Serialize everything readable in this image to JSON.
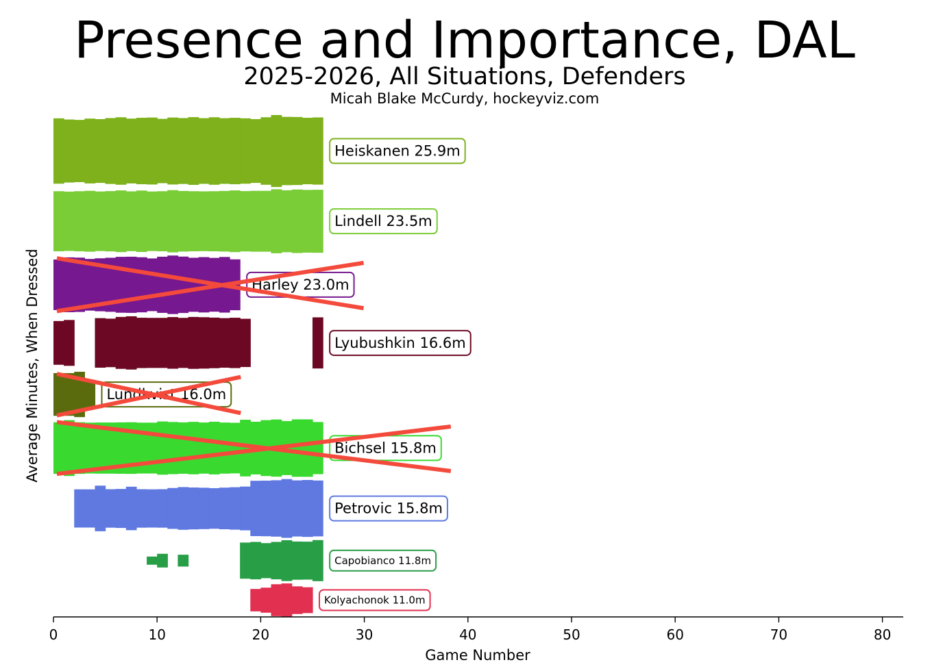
{
  "chart_data": {
    "type": "streamgraph",
    "title": "Presence and Importance, DAL",
    "subtitle": "2025-2026, All Situations, Defenders",
    "credit": "Micah Blake McCurdy, hockeyviz.com",
    "xlabel": "Game Number",
    "ylabel": "Average Minutes, When Dressed",
    "xlim": [
      0,
      82
    ],
    "xticks": [
      0,
      10,
      20,
      30,
      40,
      50,
      60,
      70,
      80
    ],
    "colors": {
      "strike": "#f44a3c",
      "axis": "#000000"
    },
    "players": [
      {
        "name": "Heiskanen",
        "label": "Heiskanen 25.9m",
        "avg": 25.9,
        "color": "#7eb11b",
        "big_label": true,
        "crossed": false,
        "segments": [
          {
            "start": 0,
            "values": [
              24.8,
              23.9,
              23.6,
              24.6,
              24.2,
              25.0,
              25.6,
              24.6,
              25.2,
              25.4,
              24.4,
              25.4,
              25.0,
              25.7,
              24.9,
              25.6,
              24.9,
              25.2,
              24.8,
              24.2,
              25.6,
              27.3,
              25.9,
              25.8,
              25.2,
              25.5
            ]
          }
        ]
      },
      {
        "name": "Lindell",
        "label": "Lindell 23.5m",
        "avg": 23.5,
        "color": "#7acd36",
        "big_label": true,
        "crossed": false,
        "segments": [
          {
            "start": 0,
            "values": [
              22.8,
              22.5,
              22.8,
              23.1,
              22.6,
              22.9,
              23.4,
              22.7,
              23.3,
              22.6,
              22.8,
              23.6,
              23.0,
              22.8,
              22.7,
              22.8,
              23.0,
              23.4,
              22.9,
              23.1,
              23.1,
              24.3,
              23.5,
              24.1,
              23.8,
              23.9
            ]
          }
        ]
      },
      {
        "name": "Harley",
        "label": "Harley 23.0m",
        "avg": 23.0,
        "color": "#76188f",
        "big_label": true,
        "crossed": true,
        "segments": [
          {
            "start": 0,
            "values": [
              19.2,
              20.8,
              20.6,
              19.6,
              20.1,
              20.5,
              21.2,
              21.3,
              20.9,
              20.0,
              21.3,
              22.2,
              21.4,
              20.5,
              21.0,
              20.4,
              21.1,
              19.3
            ]
          }
        ]
      },
      {
        "name": "Lyubushkin",
        "label": "Lyubushkin 16.6m",
        "avg": 16.6,
        "color": "#6c0823",
        "big_label": true,
        "crossed": false,
        "segments": [
          {
            "start": 0,
            "values": [
              16.6,
              17.4
            ]
          },
          {
            "start": 4,
            "values": [
              18.8,
              18.4,
              19.7,
              20.2,
              19.1,
              19.0,
              19.0,
              19.6,
              19.0,
              19.7,
              19.5,
              19.2,
              18.8,
              19.1,
              18.3
            ]
          },
          {
            "start": 25,
            "values": [
              19.4
            ]
          }
        ]
      },
      {
        "name": "Lundkvist",
        "label": "Lundkvist 16.0m",
        "avg": 16.0,
        "color": "#596b0c",
        "big_label": true,
        "crossed": true,
        "segments": [
          {
            "start": 0,
            "values": [
              16.2,
              16.2,
              17.2,
              11.1
            ]
          }
        ]
      },
      {
        "name": "Bichsel",
        "label": "Bichsel 15.8m",
        "avg": 15.8,
        "color": "#3ad930",
        "big_label": true,
        "crossed": true,
        "segments": [
          {
            "start": 0,
            "values": [
              19.6,
              21.2,
              19.6,
              19.3,
              19.4,
              19.4,
              19.5,
              19.6,
              19.3,
              19.3,
              20.2,
              19.8,
              19.5,
              19.9,
              19.4,
              20.0,
              19.4,
              19.2,
              21.5,
              20.0,
              21.2,
              21.7,
              20.5,
              21.8,
              21.8,
              19.8
            ]
          }
        ]
      },
      {
        "name": "Petrovic",
        "label": "Petrovic 15.8m",
        "avg": 15.8,
        "color": "#5f79e1",
        "big_label": true,
        "crossed": false,
        "segments": [
          {
            "start": 2,
            "values": [
              14.5,
              14.5,
              17.3,
              14.6,
              14.8,
              16.5,
              14.6,
              14.5,
              14.6,
              15.5,
              16.2,
              15.9,
              15.7,
              15.4,
              15.8,
              16.1,
              16.6,
              21.0,
              21.1,
              21.4,
              22.3,
              21.3,
              21.6,
              21.2
            ]
          }
        ]
      },
      {
        "name": "Capobianco",
        "label": "Capobianco 11.8m",
        "avg": 11.8,
        "color": "#289e46",
        "big_label": false,
        "crossed": false,
        "segments": [
          {
            "start": 9,
            "values": [
              3.1,
              5.2
            ]
          },
          {
            "start": 12,
            "values": [
              4.5
            ]
          },
          {
            "start": 18,
            "values": [
              13.7,
              14.2,
              13.3,
              14.2,
              15.5,
              14.5,
              14.4,
              15.6
            ]
          }
        ]
      },
      {
        "name": "Kolyachonok",
        "label": "Kolyachonok 11.0m",
        "avg": 11.0,
        "color": "#e23050",
        "big_label": false,
        "crossed": false,
        "segments": [
          {
            "start": 19,
            "values": [
              8.5,
              9.5,
              12.1,
              12.7,
              10.5,
              9.8
            ]
          }
        ]
      }
    ]
  }
}
